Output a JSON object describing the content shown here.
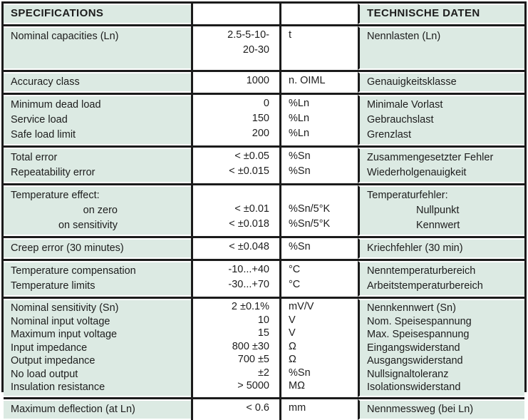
{
  "colors": {
    "cell_green": "#dceae3",
    "grid_line": "#1b1b1b",
    "text": "#1d1d1d"
  },
  "header": {
    "en": "SPECIFICATIONS",
    "de": "TECHNISCHE DATEN"
  },
  "rows": [
    {
      "en": [
        "Nominal capacities (Ln)"
      ],
      "val": [
        "2.5-5-10-",
        "20-30"
      ],
      "unit": [
        "t"
      ],
      "de": [
        "Nennlasten (Ln)"
      ]
    },
    {
      "en": [
        "Accuracy class"
      ],
      "val": [
        "1000"
      ],
      "unit": [
        "n. OIML"
      ],
      "de": [
        "Genauigkeitsklasse"
      ]
    },
    {
      "en": [
        "Minimum dead load",
        "Service load",
        "Safe load limit"
      ],
      "val": [
        "0",
        "150",
        "200"
      ],
      "unit": [
        "%Ln",
        "%Ln",
        "%Ln"
      ],
      "de": [
        "Minimale Vorlast",
        "Gebrauchslast",
        "Grenzlast"
      ]
    },
    {
      "en": [
        "Total error",
        "Repeatability error"
      ],
      "val": [
        "< ±0.05",
        "< ±0.015"
      ],
      "unit": [
        "%Sn",
        "%Sn"
      ],
      "de": [
        "Zusammengesetzter Fehler",
        "Wiederholgenauigkeit"
      ]
    },
    {
      "en": [
        "Temperature effect:",
        "on zero",
        "on sensitivity"
      ],
      "val": [
        "",
        "< ±0.01",
        "< ±0.018"
      ],
      "unit": [
        "",
        "%Sn/5°K",
        "%Sn/5°K"
      ],
      "de": [
        "Temperaturfehler:",
        "Nullpunkt",
        "Kennwert"
      ]
    },
    {
      "en": [
        "Creep error (30 minutes)"
      ],
      "val": [
        "< ±0.048"
      ],
      "unit": [
        "%Sn"
      ],
      "de": [
        "Kriechfehler (30 min)"
      ]
    },
    {
      "en": [
        "Temperature compensation",
        "Temperature limits"
      ],
      "val": [
        "-10...+40",
        "-30...+70"
      ],
      "unit": [
        "°C",
        "°C"
      ],
      "de": [
        "Nenntemperaturbereich",
        "Arbeitstemperaturbereich"
      ]
    },
    {
      "en": [
        "Nominal sensitivity (Sn)",
        "Nominal input voltage",
        "Maximum input voltage",
        "Input impedance",
        "Output impedance",
        "No load output",
        "Insulation resistance"
      ],
      "val": [
        "2 ±0.1%",
        "10",
        "15",
        "800 ±30",
        "700 ±5",
        "±2",
        "> 5000"
      ],
      "unit": [
        "mV/V",
        "V",
        "V",
        "Ω",
        "Ω",
        "%Sn",
        "MΩ"
      ],
      "de": [
        "Nennkennwert (Sn)",
        "Nom. Speisespannung",
        "Max. Speisespannung",
        "Eingangswiderstand",
        "Ausgangswiderstand",
        "Nullsignaltoleranz",
        "Isolationswiderstand"
      ]
    },
    {
      "en": [
        "Maximum deflection (at Ln)"
      ],
      "val": [
        "< 0.6"
      ],
      "unit": [
        "mm"
      ],
      "de": [
        "Nennmessweg (bei Ln)"
      ]
    }
  ]
}
